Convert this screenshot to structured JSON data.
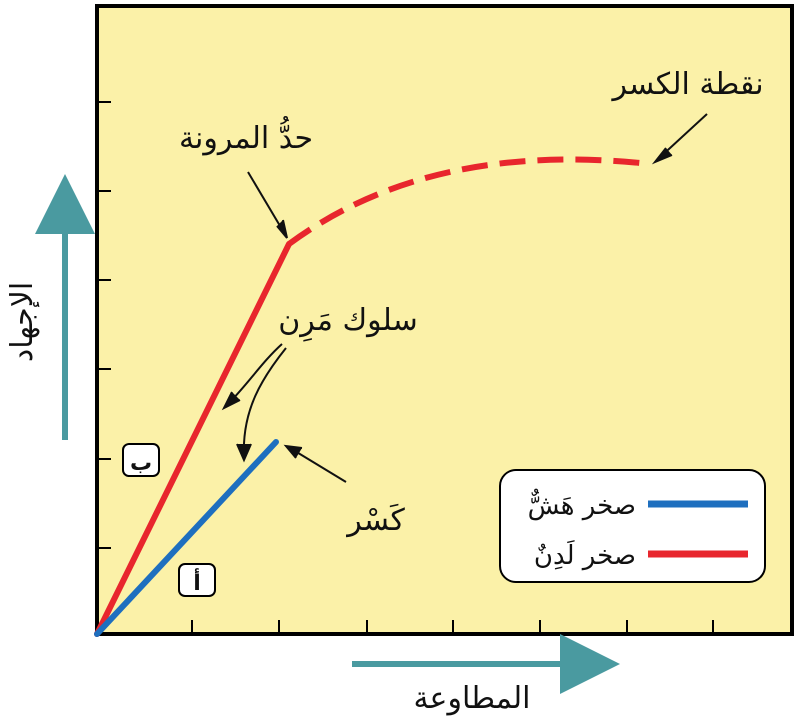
{
  "axes": {
    "x_label": "المطاوعة",
    "y_label": "الإجهاد"
  },
  "annotations": {
    "elastic_limit": "حدُّ المرونة",
    "fracture_point": "نقطة الكسر",
    "elastic_behavior": "سلوك مَرِن",
    "fracture": "كَسْر"
  },
  "markers": {
    "a": "أ",
    "b": "ب"
  },
  "legend": {
    "items": [
      {
        "label": "صخر هَشٌّ",
        "color": "#1e6fbf"
      },
      {
        "label": "صخر لَدِنٌ",
        "color": "#e8262d"
      }
    ]
  },
  "colors": {
    "background": "#fbf1a8",
    "axis_arrow": "#4a9aa0",
    "ductile": "#e8262d",
    "brittle": "#1e6fbf"
  }
}
